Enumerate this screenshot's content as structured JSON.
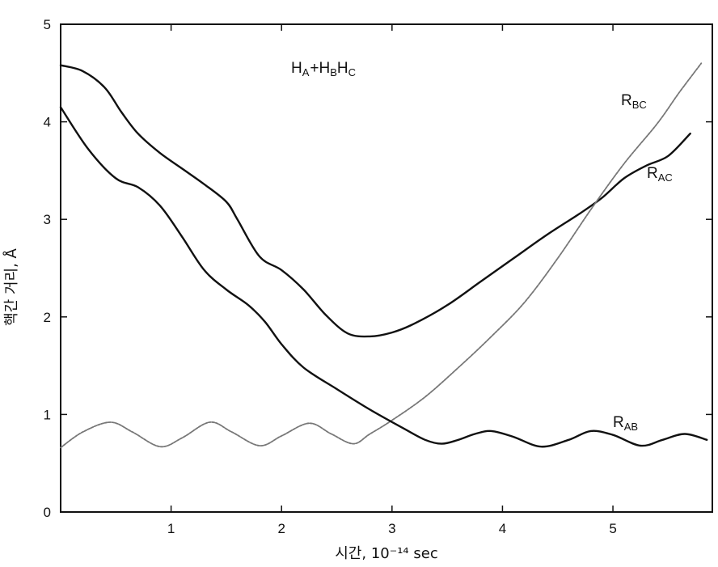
{
  "chart_data": {
    "type": "line",
    "title": "",
    "xlabel": "시간, 10⁻¹⁴ sec",
    "ylabel": "핵간 거리, Å",
    "xlim": [
      0,
      5.9
    ],
    "ylim": [
      0,
      5
    ],
    "xticks": [
      "1",
      "2",
      "3",
      "4",
      "5"
    ],
    "yticks": [
      "0",
      "1",
      "2",
      "3",
      "4",
      "5"
    ],
    "grid": false,
    "annotations": {
      "reaction": {
        "base1": "H",
        "sub1": "A",
        "plus": "+",
        "base2": "H",
        "sub2": "B",
        "base3": "H",
        "sub3": "C"
      },
      "r_bc": {
        "base": "R",
        "sub": "BC"
      },
      "r_ac": {
        "base": "R",
        "sub": "AC"
      },
      "r_ab": {
        "base": "R",
        "sub": "AB"
      }
    },
    "series": [
      {
        "name": "R_AC",
        "style": "solid",
        "color": "#111111",
        "x": [
          0,
          0.2,
          0.4,
          0.55,
          0.7,
          0.9,
          1.1,
          1.3,
          1.5,
          1.6,
          1.8,
          2.0,
          2.2,
          2.4,
          2.6,
          2.8,
          3.0,
          3.2,
          3.5,
          3.8,
          4.1,
          4.4,
          4.7,
          4.9,
          5.1,
          5.3,
          5.5,
          5.7
        ],
        "y": [
          4.58,
          4.52,
          4.35,
          4.1,
          3.88,
          3.68,
          3.52,
          3.36,
          3.18,
          3.0,
          2.62,
          2.48,
          2.28,
          2.02,
          1.83,
          1.8,
          1.84,
          1.93,
          2.12,
          2.36,
          2.6,
          2.84,
          3.06,
          3.22,
          3.42,
          3.55,
          3.65,
          3.88
        ]
      },
      {
        "name": "R_BC",
        "style": "dashed",
        "color": "#777777",
        "x": [
          0,
          0.2,
          0.45,
          0.65,
          0.9,
          1.1,
          1.35,
          1.55,
          1.8,
          2.0,
          2.25,
          2.45,
          2.65,
          2.8,
          3.0,
          3.3,
          3.6,
          3.9,
          4.2,
          4.5,
          4.8,
          5.1,
          5.4,
          5.6,
          5.8
        ],
        "y": [
          0.66,
          0.82,
          0.92,
          0.82,
          0.67,
          0.76,
          0.92,
          0.82,
          0.68,
          0.78,
          0.91,
          0.8,
          0.7,
          0.8,
          0.94,
          1.18,
          1.48,
          1.8,
          2.15,
          2.6,
          3.1,
          3.57,
          3.98,
          4.3,
          4.6
        ]
      },
      {
        "name": "R_AB",
        "style": "solid",
        "color": "#111111",
        "x": [
          0,
          0.25,
          0.5,
          0.7,
          0.9,
          1.1,
          1.3,
          1.5,
          1.7,
          1.85,
          2.0,
          2.2,
          2.5,
          2.8,
          3.1,
          3.3,
          3.45,
          3.6,
          3.75,
          3.9,
          4.1,
          4.35,
          4.6,
          4.8,
          5.0,
          5.25,
          5.45,
          5.65,
          5.85
        ],
        "y": [
          4.15,
          3.72,
          3.42,
          3.33,
          3.14,
          2.82,
          2.48,
          2.28,
          2.12,
          1.95,
          1.72,
          1.48,
          1.26,
          1.05,
          0.86,
          0.74,
          0.7,
          0.74,
          0.8,
          0.83,
          0.77,
          0.67,
          0.74,
          0.83,
          0.79,
          0.68,
          0.74,
          0.8,
          0.74
        ]
      }
    ]
  }
}
